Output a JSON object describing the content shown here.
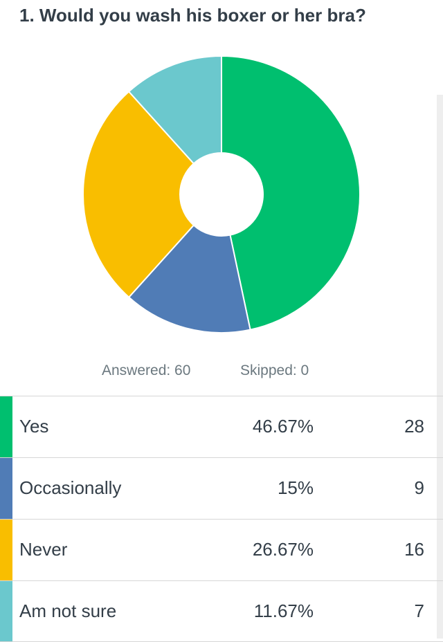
{
  "question": {
    "title": "1. Would you wash his boxer or her bra?"
  },
  "summary": {
    "answered": "Answered: 60",
    "skipped": "Skipped: 0"
  },
  "chart_data": {
    "type": "pie",
    "title": "1. Would you wash his boxer or her bra?",
    "categories": [
      "Yes",
      "Occasionally",
      "Never",
      "Am not sure"
    ],
    "values": [
      46.67,
      15,
      26.67,
      11.67
    ],
    "counts": [
      28,
      9,
      16,
      7
    ],
    "colors": [
      "#00bf6f",
      "#507cb6",
      "#f9be00",
      "#6bc8cd"
    ],
    "donut": true
  },
  "rows": [
    {
      "label": "Yes",
      "percent": "46.67%",
      "count": "28",
      "color": "#00bf6f"
    },
    {
      "label": "Occasionally",
      "percent": "15%",
      "count": "9",
      "color": "#507cb6"
    },
    {
      "label": "Never",
      "percent": "26.67%",
      "count": "16",
      "color": "#f9be00"
    },
    {
      "label": "Am not sure",
      "percent": "11.67%",
      "count": "7",
      "color": "#6bc8cd"
    }
  ]
}
